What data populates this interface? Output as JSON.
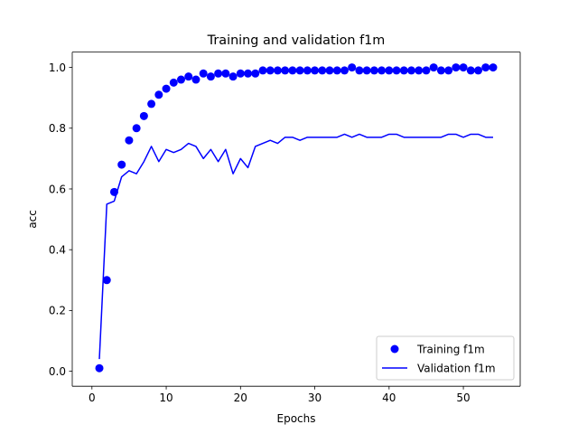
{
  "chart_data": {
    "type": "line",
    "title": "Training and validation f1m",
    "xlabel": "Epochs",
    "ylabel": "acc",
    "xlim": [
      -2.65,
      57.65
    ],
    "ylim": [
      -0.04945,
      1.0505
    ],
    "xticks": [
      0,
      10,
      20,
      30,
      40,
      50
    ],
    "yticks": [
      0.0,
      0.2,
      0.4,
      0.6,
      0.8,
      1.0
    ],
    "xtick_labels": [
      "0",
      "10",
      "20",
      "30",
      "40",
      "50"
    ],
    "ytick_labels": [
      "0.0",
      "0.2",
      "0.4",
      "0.6",
      "0.8",
      "1.0"
    ],
    "grid": false,
    "legend_position": "lower right",
    "series": [
      {
        "name": "Training f1m",
        "style": "markers",
        "color": "#0000ff",
        "x": [
          1,
          2,
          3,
          4,
          5,
          6,
          7,
          8,
          9,
          10,
          11,
          12,
          13,
          14,
          15,
          16,
          17,
          18,
          19,
          20,
          21,
          22,
          23,
          24,
          25,
          26,
          27,
          28,
          29,
          30,
          31,
          32,
          33,
          34,
          35,
          36,
          37,
          38,
          39,
          40,
          41,
          42,
          43,
          44,
          45,
          46,
          47,
          48,
          49,
          50,
          51,
          52,
          53,
          54
        ],
        "y": [
          0.01,
          0.3,
          0.59,
          0.68,
          0.76,
          0.8,
          0.84,
          0.88,
          0.91,
          0.93,
          0.95,
          0.96,
          0.97,
          0.96,
          0.98,
          0.97,
          0.98,
          0.98,
          0.97,
          0.98,
          0.98,
          0.98,
          0.99,
          0.99,
          0.99,
          0.99,
          0.99,
          0.99,
          0.99,
          0.99,
          0.99,
          0.99,
          0.99,
          0.99,
          1.0,
          0.99,
          0.99,
          0.99,
          0.99,
          0.99,
          0.99,
          0.99,
          0.99,
          0.99,
          0.99,
          1.0,
          0.99,
          0.99,
          1.0,
          1.0,
          0.99,
          0.99,
          1.0,
          1.0
        ]
      },
      {
        "name": "Validation f1m",
        "style": "line",
        "color": "#0000ff",
        "x": [
          1,
          2,
          3,
          4,
          5,
          6,
          7,
          8,
          9,
          10,
          11,
          12,
          13,
          14,
          15,
          16,
          17,
          18,
          19,
          20,
          21,
          22,
          23,
          24,
          25,
          26,
          27,
          28,
          29,
          30,
          31,
          32,
          33,
          34,
          35,
          36,
          37,
          38,
          39,
          40,
          41,
          42,
          43,
          44,
          45,
          46,
          47,
          48,
          49,
          50,
          51,
          52,
          53,
          54
        ],
        "y": [
          0.04,
          0.55,
          0.56,
          0.64,
          0.66,
          0.65,
          0.69,
          0.74,
          0.69,
          0.73,
          0.72,
          0.73,
          0.75,
          0.74,
          0.7,
          0.73,
          0.69,
          0.73,
          0.65,
          0.7,
          0.67,
          0.74,
          0.75,
          0.76,
          0.75,
          0.77,
          0.77,
          0.76,
          0.77,
          0.77,
          0.77,
          0.77,
          0.77,
          0.78,
          0.77,
          0.78,
          0.77,
          0.77,
          0.77,
          0.78,
          0.78,
          0.77,
          0.77,
          0.77,
          0.77,
          0.77,
          0.77,
          0.78,
          0.78,
          0.77,
          0.78,
          0.78,
          0.77,
          0.77
        ]
      }
    ]
  }
}
